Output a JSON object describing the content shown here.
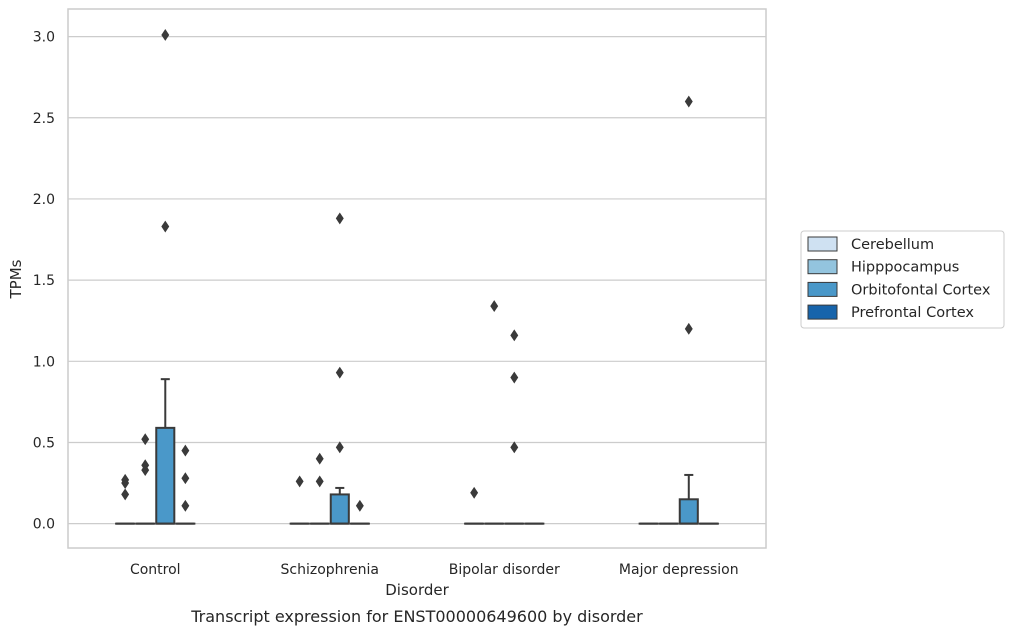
{
  "chart_data": {
    "type": "box",
    "caption": "Transcript expression for ENST00000649600 by disorder",
    "xlabel": "Disorder",
    "ylabel": "TPMs",
    "categories": [
      "Control",
      "Schizophrenia",
      "Bipolar disorder",
      "Major depression"
    ],
    "ylim": [
      -0.15,
      3.17
    ],
    "yticks": [
      0.0,
      0.5,
      1.0,
      1.5,
      2.0,
      2.5,
      3.0
    ],
    "ytick_labels": [
      "0.0",
      "0.5",
      "1.0",
      "1.5",
      "2.0",
      "2.5",
      "3.0"
    ],
    "grid": true,
    "legend_placement": "right",
    "hue_order": [
      "Cerebellum",
      "Hipppocampus",
      "Orbitofontal Cortex",
      "Prefrontal Cortex"
    ],
    "colors": {
      "Cerebellum": "#cfe1f2",
      "Hipppocampus": "#93c4de",
      "Orbitofontal Cortex": "#4a98c9",
      "Prefrontal Cortex": "#1764ab",
      "line": "#3a3a3a",
      "grid": "#cccccc"
    },
    "boxes": [
      {
        "category": "Control",
        "series": "Cerebellum",
        "q1": 0,
        "median": 0,
        "q3": 0,
        "whisker_low": 0,
        "whisker_high": 0,
        "outliers": [
          0.18,
          0.25,
          0.27
        ]
      },
      {
        "category": "Control",
        "series": "Hipppocampus",
        "q1": 0,
        "median": 0,
        "q3": 0,
        "whisker_low": 0,
        "whisker_high": 0,
        "outliers": [
          0.33,
          0.36,
          0.52
        ]
      },
      {
        "category": "Control",
        "series": "Orbitofontal Cortex",
        "q1": 0,
        "median": 0,
        "q3": 0.59,
        "whisker_low": 0,
        "whisker_high": 0.89,
        "outliers": [
          1.83,
          3.01
        ]
      },
      {
        "category": "Control",
        "series": "Prefrontal Cortex",
        "q1": 0,
        "median": 0,
        "q3": 0,
        "whisker_low": 0,
        "whisker_high": 0,
        "outliers": [
          0.11,
          0.28,
          0.45
        ]
      },
      {
        "category": "Schizophrenia",
        "series": "Cerebellum",
        "q1": 0,
        "median": 0,
        "q3": 0,
        "whisker_low": 0,
        "whisker_high": 0,
        "outliers": [
          0.26
        ]
      },
      {
        "category": "Schizophrenia",
        "series": "Hipppocampus",
        "q1": 0,
        "median": 0,
        "q3": 0,
        "whisker_low": 0,
        "whisker_high": 0,
        "outliers": [
          0.26,
          0.4
        ]
      },
      {
        "category": "Schizophrenia",
        "series": "Orbitofontal Cortex",
        "q1": 0,
        "median": 0,
        "q3": 0.18,
        "whisker_low": 0,
        "whisker_high": 0.22,
        "outliers": [
          0.47,
          0.93,
          1.88
        ]
      },
      {
        "category": "Schizophrenia",
        "series": "Prefrontal Cortex",
        "q1": 0,
        "median": 0,
        "q3": 0,
        "whisker_low": 0,
        "whisker_high": 0,
        "outliers": [
          0.11
        ]
      },
      {
        "category": "Bipolar disorder",
        "series": "Cerebellum",
        "q1": 0,
        "median": 0,
        "q3": 0,
        "whisker_low": 0,
        "whisker_high": 0,
        "outliers": [
          0.19
        ]
      },
      {
        "category": "Bipolar disorder",
        "series": "Hipppocampus",
        "q1": 0,
        "median": 0,
        "q3": 0,
        "whisker_low": 0,
        "whisker_high": 0,
        "outliers": [
          1.34
        ]
      },
      {
        "category": "Bipolar disorder",
        "series": "Orbitofontal Cortex",
        "q1": 0,
        "median": 0,
        "q3": 0,
        "whisker_low": 0,
        "whisker_high": 0,
        "outliers": [
          0.47,
          0.9,
          1.16
        ]
      },
      {
        "category": "Bipolar disorder",
        "series": "Prefrontal Cortex",
        "q1": 0,
        "median": 0,
        "q3": 0,
        "whisker_low": 0,
        "whisker_high": 0,
        "outliers": []
      },
      {
        "category": "Major depression",
        "series": "Cerebellum",
        "q1": 0,
        "median": 0,
        "q3": 0,
        "whisker_low": 0,
        "whisker_high": 0,
        "outliers": []
      },
      {
        "category": "Major depression",
        "series": "Hipppocampus",
        "q1": 0,
        "median": 0,
        "q3": 0,
        "whisker_low": 0,
        "whisker_high": 0,
        "outliers": []
      },
      {
        "category": "Major depression",
        "series": "Orbitofontal Cortex",
        "q1": 0,
        "median": 0,
        "q3": 0.15,
        "whisker_low": 0,
        "whisker_high": 0.3,
        "outliers": [
          1.2,
          2.6
        ]
      },
      {
        "category": "Major depression",
        "series": "Prefrontal Cortex",
        "q1": 0,
        "median": 0,
        "q3": 0,
        "whisker_low": 0,
        "whisker_high": 0,
        "outliers": []
      }
    ]
  }
}
